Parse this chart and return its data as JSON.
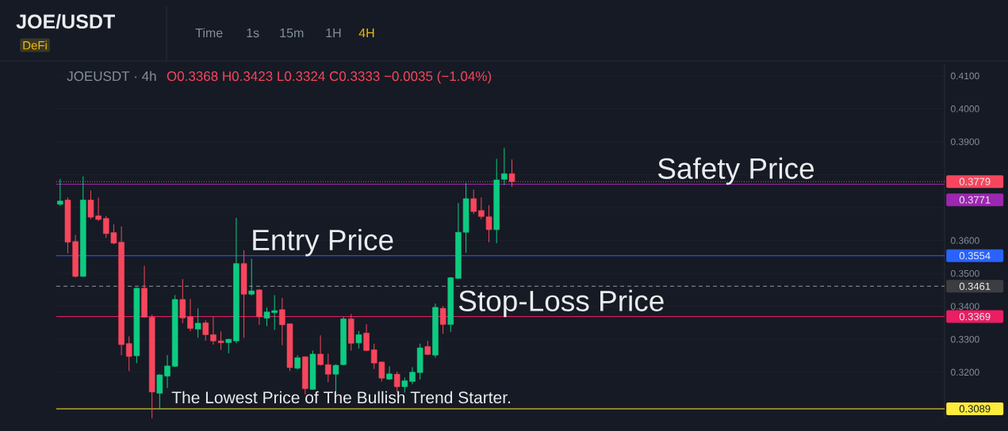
{
  "chart_data": {
    "type": "candlestick",
    "title": "JOE/USDT",
    "subtitle": "JOEUSDT · 4h",
    "categories": [
      null,
      null,
      null,
      null,
      null,
      null,
      null,
      null,
      null,
      null,
      null,
      null,
      null,
      null,
      null,
      null,
      null,
      null,
      null,
      null,
      null,
      null,
      null,
      null,
      null,
      null,
      null,
      null,
      null,
      null,
      null,
      null,
      null,
      null,
      null,
      null,
      null,
      null,
      null,
      null,
      null,
      null,
      null,
      null,
      null,
      null,
      null,
      null,
      null,
      null,
      null,
      null,
      null,
      null,
      null,
      null,
      null,
      null,
      null,
      null,
      null,
      null,
      null,
      null,
      null,
      null,
      null,
      null,
      null,
      null,
      null,
      null,
      null,
      null,
      null,
      null,
      null,
      null,
      null,
      null,
      null,
      null,
      null,
      null,
      null,
      null,
      null,
      null,
      null,
      null,
      null,
      null,
      null,
      null,
      null,
      null,
      null,
      null,
      null,
      null,
      null,
      null,
      null,
      null,
      null,
      null,
      null,
      null,
      null,
      null,
      null,
      null,
      null,
      null,
      null,
      null
    ],
    "ohlc": [
      [
        0.371,
        0.3787,
        0.3705,
        0.372
      ],
      [
        0.3723,
        0.3731,
        0.3561,
        0.3595
      ],
      [
        0.3597,
        0.3617,
        0.3487,
        0.3491
      ],
      [
        0.3491,
        0.3795,
        0.349,
        0.3723
      ],
      [
        0.3723,
        0.3752,
        0.3665,
        0.3671
      ],
      [
        0.3675,
        0.373,
        0.3659,
        0.3664
      ],
      [
        0.3667,
        0.3675,
        0.3608,
        0.3621
      ],
      [
        0.3624,
        0.3649,
        0.3589,
        0.3592
      ],
      [
        0.3595,
        0.3643,
        0.3252,
        0.3284
      ],
      [
        0.3287,
        0.3309,
        0.3204,
        0.3248
      ],
      [
        0.325,
        0.3457,
        0.3228,
        0.3455
      ],
      [
        0.3455,
        0.3523,
        0.3366,
        0.3367
      ],
      [
        0.3367,
        0.3375,
        0.306,
        0.314
      ],
      [
        0.3136,
        0.3194,
        0.3089,
        0.3192
      ],
      [
        0.3188,
        0.3252,
        0.3152,
        0.3219
      ],
      [
        0.3218,
        0.3434,
        0.3216,
        0.3421
      ],
      [
        0.3421,
        0.3483,
        0.3349,
        0.3365
      ],
      [
        0.3368,
        0.3423,
        0.3324,
        0.3333
      ],
      [
        0.3331,
        0.3394,
        0.3305,
        0.3349
      ],
      [
        0.335,
        0.3358,
        0.3296,
        0.3314
      ],
      [
        0.3314,
        0.3368,
        0.3284,
        0.3295
      ],
      [
        0.3295,
        0.3324,
        0.3268,
        0.329
      ],
      [
        0.329,
        0.3302,
        0.3258,
        0.33
      ],
      [
        0.3295,
        0.3669,
        0.3288,
        0.353
      ],
      [
        0.353,
        0.3571,
        0.3304,
        0.3437
      ],
      [
        0.3437,
        0.3545,
        0.3433,
        0.3447
      ],
      [
        0.345,
        0.3452,
        0.3344,
        0.3368
      ],
      [
        0.3364,
        0.3397,
        0.334,
        0.3383
      ],
      [
        0.3381,
        0.3434,
        0.3328,
        0.3387
      ],
      [
        0.339,
        0.3426,
        0.3282,
        0.3344
      ],
      [
        0.3347,
        0.3348,
        0.3204,
        0.3214
      ],
      [
        0.3212,
        0.3252,
        0.3208,
        0.3244
      ],
      [
        0.3247,
        0.3248,
        0.3132,
        0.315
      ],
      [
        0.3148,
        0.3266,
        0.3147,
        0.3255
      ],
      [
        0.3255,
        0.3312,
        0.322,
        0.3223
      ],
      [
        0.3223,
        0.3256,
        0.317,
        0.3194
      ],
      [
        0.3194,
        0.3224,
        0.3142,
        0.3221
      ],
      [
        0.3223,
        0.3368,
        0.3222,
        0.3362
      ],
      [
        0.3362,
        0.3377,
        0.3266,
        0.3288
      ],
      [
        0.3289,
        0.3325,
        0.3272,
        0.3314
      ],
      [
        0.3319,
        0.3346,
        0.3264,
        0.3266
      ],
      [
        0.3268,
        0.3287,
        0.321,
        0.3228
      ],
      [
        0.3231,
        0.3232,
        0.3172,
        0.3182
      ],
      [
        0.3179,
        0.3218,
        0.3176,
        0.3195
      ],
      [
        0.3194,
        0.3202,
        0.314,
        0.3156
      ],
      [
        0.3156,
        0.3184,
        0.3138,
        0.3174
      ],
      [
        0.3172,
        0.3215,
        0.3164,
        0.32
      ],
      [
        0.3199,
        0.3287,
        0.3178,
        0.3274
      ],
      [
        0.3278,
        0.3295,
        0.3252,
        0.3254
      ],
      [
        0.3252,
        0.3409,
        0.3244,
        0.3397
      ],
      [
        0.3394,
        0.3401,
        0.3317,
        0.3345
      ],
      [
        0.3345,
        0.3489,
        0.3322,
        0.3487
      ],
      [
        0.3485,
        0.3714,
        0.3484,
        0.3625
      ],
      [
        0.3625,
        0.3774,
        0.3563,
        0.3727
      ],
      [
        0.3727,
        0.3755,
        0.3681,
        0.3688
      ],
      [
        0.3691,
        0.3731,
        0.3665,
        0.3673
      ],
      [
        0.3672,
        0.3707,
        0.3595,
        0.3633
      ],
      [
        0.3633,
        0.3848,
        0.3592,
        0.3784
      ],
      [
        0.3786,
        0.3882,
        0.3768,
        0.3803
      ],
      [
        0.3803,
        0.3846,
        0.3763,
        0.3779
      ],
      null,
      null,
      null,
      null,
      null,
      null,
      null,
      null,
      null,
      null,
      null,
      null,
      null,
      null,
      null,
      null,
      null,
      null,
      null,
      null,
      null,
      null,
      null,
      null,
      null,
      null,
      null,
      null,
      null,
      null,
      null,
      null,
      null,
      null,
      null,
      null,
      null,
      null,
      null,
      null,
      null,
      null,
      null,
      null,
      null,
      null,
      null,
      null,
      null,
      null,
      null,
      null,
      null,
      null,
      null,
      null
    ],
    "colors": [
      "#0ecb81",
      "#f6465d",
      "#f6465d",
      "#0ecb81",
      "#f6465d",
      "#f6465d",
      "#f6465d",
      "#f6465d",
      "#f6465d",
      "#f6465d",
      "#0ecb81",
      "#f6465d",
      "#f6465d",
      "#0ecb81",
      "#0ecb81",
      "#0ecb81",
      "#f6465d",
      "#f6465d",
      "#0ecb81",
      "#f6465d",
      "#f6465d",
      "#f6465d",
      "#0ecb81",
      "#0ecb81",
      "#f6465d",
      "#0ecb81",
      "#f6465d",
      "#0ecb81",
      "#0ecb81",
      "#f6465d",
      "#f6465d",
      "#0ecb81",
      "#f6465d",
      "#0ecb81",
      "#f6465d",
      "#f6465d",
      "#0ecb81",
      "#0ecb81",
      "#f6465d",
      "#0ecb81",
      "#f6465d",
      "#f6465d",
      "#f6465d",
      "#0ecb81",
      "#f6465d",
      "#0ecb81",
      "#0ecb81",
      "#0ecb81",
      "#f6465d",
      "#0ecb81",
      "#f6465d",
      "#0ecb81",
      "#0ecb81",
      "#0ecb81",
      "#f6465d",
      "#f6465d",
      "#f6465d",
      "#0ecb81",
      "#0ecb81",
      "#f6465d",
      null,
      null,
      null,
      null,
      null,
      null,
      null,
      null,
      null,
      null,
      null,
      null,
      null,
      null,
      null,
      null,
      null,
      null,
      null,
      null,
      null,
      null,
      null,
      null,
      null,
      null,
      null,
      null,
      null,
      null,
      null,
      null,
      null,
      null,
      null,
      null,
      null,
      null,
      null,
      null,
      null,
      null,
      null,
      null,
      null,
      null,
      null,
      null,
      null,
      null,
      null,
      null,
      null,
      null,
      null,
      null
    ],
    "ylim": [
      0.306,
      0.4138
    ],
    "yticks": [
      {
        "value": 0.32,
        "label": "0.3200"
      },
      {
        "value": 0.33,
        "label": "0.3300"
      },
      {
        "value": 0.34,
        "label": "0.3400"
      },
      {
        "value": 0.35,
        "label": "0.3500"
      },
      {
        "value": 0.36,
        "label": "0.3600"
      },
      {
        "value": 0.37,
        "label": null
      },
      {
        "value": 0.38,
        "label": null
      },
      {
        "value": 0.39,
        "label": "0.3900"
      },
      {
        "value": 0.4,
        "label": "0.4000"
      },
      {
        "value": 0.41,
        "label": "0.4100"
      }
    ],
    "tick_labels": "y",
    "grid": "y",
    "ref_lines": [
      {
        "axis": "y",
        "value": 0.3779,
        "label": "0.3779",
        "color": "#f6465d",
        "line_style": "dotted"
      },
      {
        "axis": "y",
        "value": 0.3771,
        "label": "0.3771",
        "color": "#9c27b0",
        "line_style": "solid"
      },
      {
        "axis": "y",
        "value": 0.3554,
        "label": "0.3554",
        "color": "#2962ff",
        "line_style": "solid"
      },
      {
        "axis": "y",
        "value": 0.3461,
        "label": "0.3461",
        "color": "#9598a1",
        "line_style": "dashed"
      },
      {
        "axis": "y",
        "value": 0.3369,
        "label": "0.3369",
        "color": "#e91e63",
        "line_style": "solid"
      },
      {
        "axis": "y",
        "value": 0.3089,
        "label": "0.3089",
        "color": "#ffeb3b",
        "line_style": "solid"
      }
    ],
    "annotations": [
      {
        "text": "Safety Price",
        "y": 0.3771
      },
      {
        "text": "Entry Price",
        "y": 0.3554
      },
      {
        "text": "Stop-Loss Price",
        "y": 0.3369
      },
      {
        "text": "The Lowest Price of The Bullish Trend Starter.",
        "y": 0.3089
      },
      "O0.3368 H0.3423 L0.3324 C0.3333 −0.0035 (−1.04%)",
      "DeFi",
      "Time",
      "1s",
      "15m",
      "1H",
      "4H"
    ]
  }
}
